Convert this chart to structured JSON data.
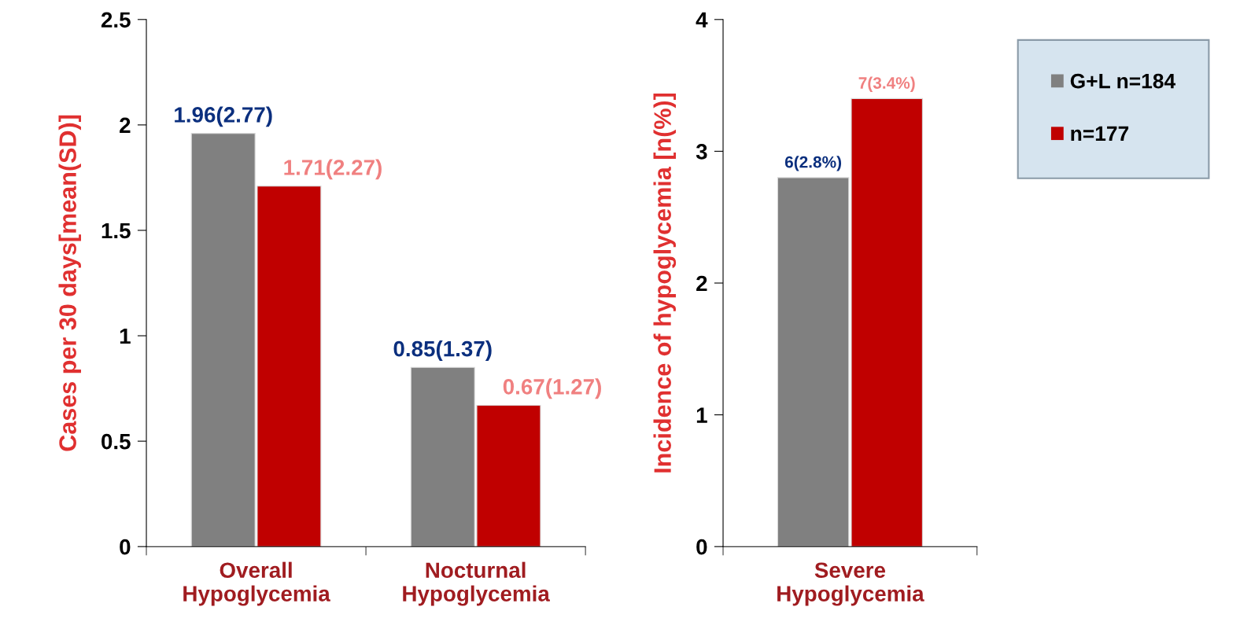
{
  "chart_data": [
    {
      "type": "bar",
      "ylabel": "Cases per 30 days[mean(SD)]",
      "categories": [
        "Overall\nHypoglycemia",
        "Nocturnal\nHypoglycemia"
      ],
      "ylim": [
        0,
        2.5
      ],
      "yticks": [
        0,
        0.5,
        1,
        1.5,
        2,
        2.5
      ],
      "grid": false,
      "series": [
        {
          "color": "#808080",
          "values": [
            1.96,
            0.85
          ],
          "value_labels": [
            "1.96(2.77)",
            "0.85(1.37)"
          ]
        },
        {
          "color": "#c00000",
          "values": [
            1.71,
            0.67
          ],
          "value_labels": [
            "1.71(2.27)",
            "0.67(1.27)"
          ]
        }
      ]
    },
    {
      "type": "bar",
      "ylabel": "Incidence of hypoglycemia [n(%)]",
      "categories": [
        "Severe\nHypoglycemia"
      ],
      "ylim": [
        0,
        4
      ],
      "yticks": [
        0,
        1,
        2,
        3,
        4
      ],
      "grid": false,
      "legend": "right",
      "series": [
        {
          "name": "G+L n=184",
          "color": "#808080",
          "values": [
            2.8
          ],
          "value_labels": [
            "6(2.8%)"
          ]
        },
        {
          "name": "n=177",
          "color": "#c00000",
          "values": [
            3.4
          ],
          "value_labels": [
            "7(3.4%)"
          ]
        }
      ]
    }
  ]
}
